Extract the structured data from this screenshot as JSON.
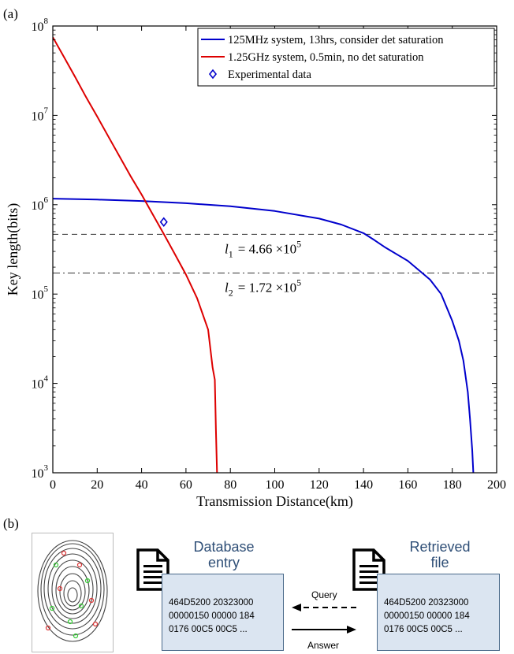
{
  "panel_a_label": "(a)",
  "panel_b_label": "(b)",
  "chart_data": {
    "type": "line",
    "xlabel": "Transmission Distance(km)",
    "ylabel": "Key length(bits)",
    "xlim": [
      0,
      200
    ],
    "ylim": [
      1000,
      100000000
    ],
    "yscale": "log",
    "x_ticks": [
      "0",
      "20",
      "40",
      "60",
      "80",
      "100",
      "120",
      "140",
      "160",
      "180",
      "200"
    ],
    "y_ticks": [
      {
        "base": "10",
        "exp": "3",
        "value": 1000
      },
      {
        "base": "10",
        "exp": "4",
        "value": 10000
      },
      {
        "base": "10",
        "exp": "5",
        "value": 100000
      },
      {
        "base": "10",
        "exp": "6",
        "value": 1000000
      },
      {
        "base": "10",
        "exp": "7",
        "value": 10000000
      },
      {
        "base": "10",
        "exp": "8",
        "value": 100000000
      }
    ],
    "grid": false,
    "legend_position": "top-right",
    "series": [
      {
        "name": "125MHz system, 13hrs, consider det saturation",
        "color": "#0000cc",
        "x": [
          0,
          20,
          40,
          60,
          80,
          100,
          120,
          130,
          140,
          145,
          150,
          160,
          170,
          175,
          180,
          183,
          185,
          187,
          188,
          189,
          189.5
        ],
        "y": [
          1170000,
          1140000,
          1100000,
          1040000,
          960000,
          850000,
          700000,
          600000,
          480000,
          400000,
          330000,
          235000,
          145000,
          100000,
          50000,
          30000,
          18000,
          8000,
          4000,
          1800,
          1000
        ]
      },
      {
        "name": "1.25GHz system, 0.5min, no det saturation",
        "color": "#dd0000",
        "x": [
          0,
          5,
          10,
          15,
          20,
          25,
          30,
          35,
          40,
          45,
          50,
          55,
          60,
          65,
          70,
          72,
          73,
          73.5,
          74
        ],
        "y": [
          75000000,
          45000000,
          27000000,
          16000000,
          9700000,
          5800000,
          3500000,
          2100000,
          1300000,
          780000,
          470000,
          280000,
          165000,
          90000,
          40000,
          15000,
          11000,
          3000,
          1000
        ]
      }
    ],
    "points": [
      {
        "name": "Experimental data",
        "color": "#0000cc",
        "x": 50,
        "y": 640000
      }
    ],
    "reference_lines": [
      {
        "name": "l1",
        "y": 466000,
        "style": "dashed",
        "label_base": "l",
        "label_sub": "1",
        "label_value": "= 4.66 ×10",
        "label_exp": "5"
      },
      {
        "name": "l2",
        "y": 172000,
        "style": "dashdot",
        "label_base": "l",
        "label_sub": "2",
        "label_value": "= 1.72 ×10",
        "label_exp": "5"
      }
    ]
  },
  "diagram": {
    "database_title_line1": "Database",
    "database_title_line2": "entry",
    "retrieved_title_line1": "Retrieved",
    "retrieved_title_line2": "file",
    "query_label": "Query",
    "answer_label": "Answer",
    "database_lines": [
      "464D5200 20323000",
      "00000150 00000 184",
      "0176 00C5 00C5 ..."
    ],
    "retrieved_lines": [
      "464D5200 20323000",
      "00000150 00000 184",
      "0176 00C5 00C5 ..."
    ]
  }
}
